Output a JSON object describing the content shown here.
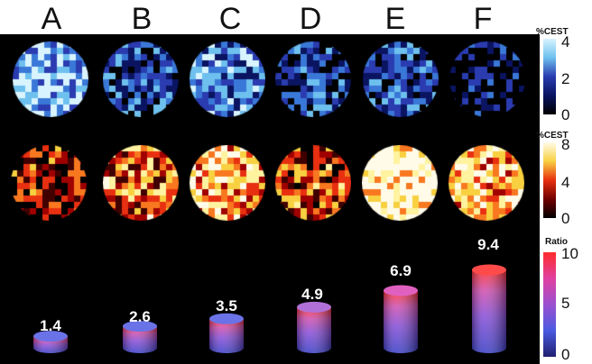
{
  "columns": [
    "A",
    "B",
    "C",
    "D",
    "E",
    "F"
  ],
  "rows": [
    {
      "name": "cest-blue",
      "colorbar_title": "%CEST",
      "ticks": [
        "4",
        "2",
        "0"
      ],
      "colors": [
        "#000000",
        "#0a1460",
        "#2a3cb0",
        "#3a78d8",
        "#6ec0ee",
        "#d8f4ff"
      ],
      "colorbar_gradient": [
        "#d8f4ff",
        "#6ec0ee",
        "#2a3cb0",
        "#0a1460",
        "#000000"
      ]
    },
    {
      "name": "cest-heat",
      "colorbar_title": "%CEST",
      "ticks": [
        "8",
        "4",
        "0"
      ],
      "colors": [
        "#000000",
        "#400000",
        "#a00000",
        "#e83010",
        "#f87820",
        "#f8d040",
        "#fff3a0",
        "#fffbe8"
      ],
      "colorbar_gradient": [
        "#fffbe8",
        "#f8d040",
        "#e83010",
        "#700000",
        "#000000"
      ]
    }
  ],
  "ratio_colorbar": {
    "title": "Ratio",
    "ticks": [
      "10",
      "5",
      "0"
    ],
    "gradient": [
      "#ff2a2a",
      "#e040a0",
      "#9a50d0",
      "#4a5ae0",
      "#202070"
    ]
  },
  "ratios": [
    "1.4",
    "2.6",
    "3.5",
    "4.9",
    "6.9",
    "9.4"
  ],
  "ratio_values": [
    1.4,
    2.6,
    3.5,
    4.9,
    6.9,
    9.4
  ],
  "ratio_max": 10,
  "intensity": {
    "cest-blue": [
      0.72,
      0.42,
      0.58,
      0.38,
      0.46,
      0.18
    ],
    "cest-heat": [
      0.3,
      0.52,
      0.66,
      0.4,
      0.93,
      0.7
    ]
  }
}
